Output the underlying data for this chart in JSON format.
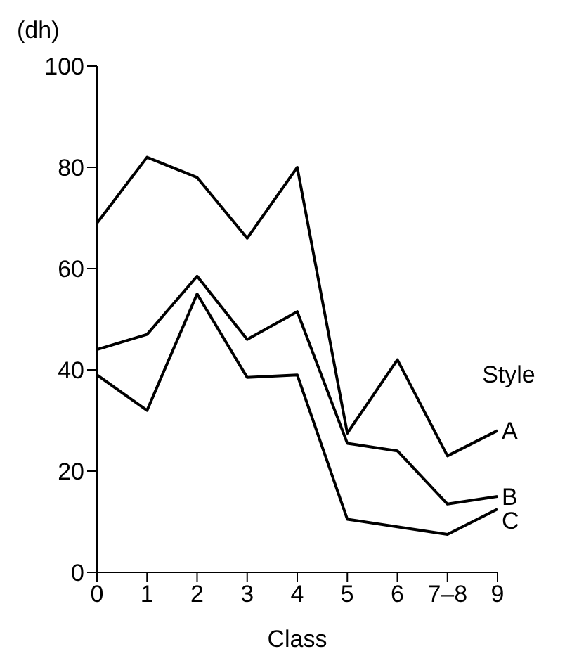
{
  "chart_data": {
    "type": "line",
    "ylabel": "(dh)",
    "xlabel": "Class",
    "legend_title": "Style",
    "categories": [
      "0",
      "1",
      "2",
      "3",
      "4",
      "5",
      "6",
      "7–8",
      "9"
    ],
    "series": [
      {
        "name": "A",
        "color": "#000000",
        "values": [
          69,
          82,
          78,
          66,
          80,
          27.5,
          42,
          23,
          28
        ]
      },
      {
        "name": "B",
        "color": "#000000",
        "values": [
          44,
          47,
          58.5,
          46,
          51.5,
          25.5,
          24,
          13.5,
          15
        ]
      },
      {
        "name": "C",
        "color": "#000000",
        "values": [
          39,
          32,
          55,
          38.5,
          39,
          10.5,
          9,
          7.5,
          12.5
        ]
      }
    ],
    "ylim": [
      0,
      100
    ],
    "yticks": [
      0,
      20,
      40,
      60,
      80,
      100
    ],
    "grid": false,
    "marker": "none",
    "line_style": "solid"
  }
}
